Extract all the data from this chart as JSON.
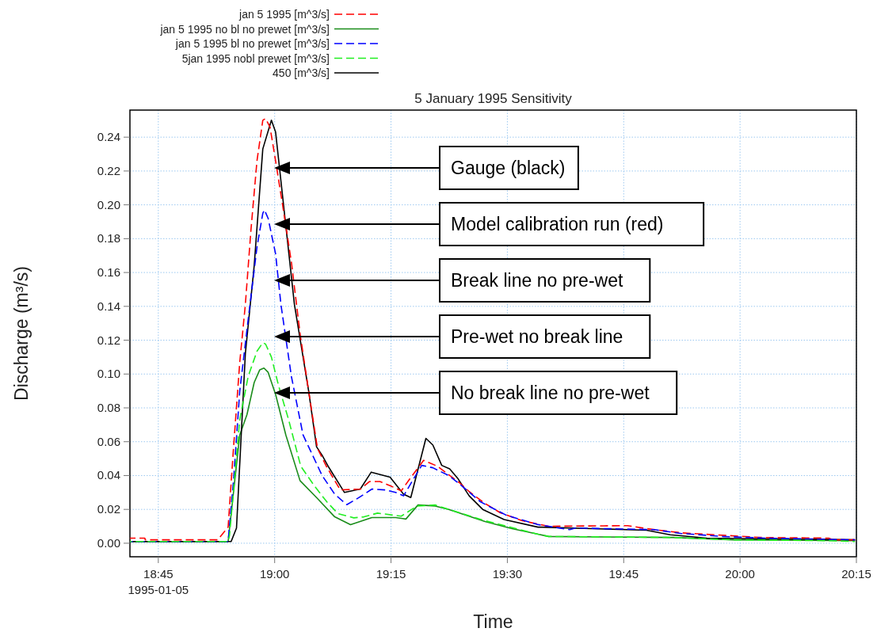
{
  "chart_data": {
    "type": "line",
    "title": "5 January 1995 Sensitivity",
    "xlabel": "Time",
    "ylabel": "Discharge (m³/s)",
    "xlim": [
      18.689,
      20.25
    ],
    "xticks": [
      {
        "value": 18.75,
        "label": "18:45\n1995-01-05"
      },
      {
        "value": 19,
        "label": "19:00"
      },
      {
        "value": 19.25,
        "label": "19:15"
      },
      {
        "value": 19.5,
        "label": "19:30"
      },
      {
        "value": 19.75,
        "label": "19:45"
      },
      {
        "value": 20,
        "label": "20:00"
      },
      {
        "value": 20.25,
        "label": "20:15"
      }
    ],
    "ylim": [
      -0.008,
      0.256
    ],
    "yticks": [
      {
        "value": 0,
        "label": "0.00"
      },
      {
        "value": 0.02,
        "label": "0.02"
      },
      {
        "value": 0.04,
        "label": "0.04"
      },
      {
        "value": 0.06,
        "label": "0.06"
      },
      {
        "value": 0.08,
        "label": "0.08"
      },
      {
        "value": 0.1,
        "label": "0.10"
      },
      {
        "value": 0.12,
        "label": "0.12"
      },
      {
        "value": 0.14,
        "label": "0.14"
      },
      {
        "value": 0.16,
        "label": "0.16"
      },
      {
        "value": 0.18,
        "label": "0.18"
      },
      {
        "value": 0.2,
        "label": "0.20"
      },
      {
        "value": 0.22,
        "label": "0.22"
      },
      {
        "value": 0.24,
        "label": "0.24"
      }
    ],
    "grid": true,
    "legend": "top left",
    "marker": "none",
    "series": [
      {
        "name": "jan 5 1995 [m^3/s]",
        "color": "#ff0000",
        "line_style": "dashed",
        "x": [
          18.689,
          18.721,
          18.722,
          18.8775,
          18.9,
          18.9115,
          18.925,
          18.937,
          18.949,
          18.962,
          18.9745,
          18.9805,
          18.99,
          19.002,
          19.017,
          19.036,
          19.0545,
          19.073,
          19.092,
          19.112,
          19.141,
          19.184,
          19.204,
          19.226,
          19.248,
          19.272,
          19.289,
          19.32,
          19.35,
          19.396,
          19.418,
          19.452,
          19.485,
          19.532,
          19.5885,
          19.7585,
          19.799,
          19.872,
          20.0425,
          20.1905,
          20.2005,
          20.247
        ],
        "values": [
          0.003,
          0.003,
          0.002,
          0.002,
          0.0095,
          0.056,
          0.107,
          0.141,
          0.185,
          0.226,
          0.25,
          0.251,
          0.246,
          0.226,
          0.2,
          0.166,
          0.124,
          0.09,
          0.056,
          0.045,
          0.0315,
          0.032,
          0.0365,
          0.0365,
          0.034,
          0.031,
          0.0375,
          0.049,
          0.0455,
          0.036,
          0.0305,
          0.0235,
          0.018,
          0.0133,
          0.01,
          0.0104,
          0.0086,
          0.0062,
          0.0034,
          0.003,
          0.002,
          0.002
        ]
      },
      {
        "name": "jan 5 1995 no bl no prewet [m^3/s]",
        "color": "#1a8c1a",
        "line_style": "solid",
        "x": [
          18.689,
          18.9,
          18.925,
          18.9405,
          18.956,
          18.968,
          18.977,
          18.986,
          19.002,
          19.024,
          19.0545,
          19.09,
          19.129,
          19.163,
          19.209,
          19.26,
          19.282,
          19.308,
          19.345,
          19.374,
          19.452,
          19.51,
          19.566,
          19.5885,
          19.8555,
          19.986,
          20.247
        ],
        "values": [
          0.001,
          0.001,
          0.064,
          0.076,
          0.095,
          0.1025,
          0.1035,
          0.101,
          0.088,
          0.064,
          0.037,
          0.027,
          0.0156,
          0.011,
          0.0152,
          0.0152,
          0.0143,
          0.0226,
          0.022,
          0.02,
          0.0128,
          0.0086,
          0.0053,
          0.004,
          0.0034,
          0.002,
          0.0015
        ]
      },
      {
        "name": "jan 5 1995 bl no prewet [m^3/s]",
        "color": "#0000ff",
        "line_style": "dashed",
        "x": [
          18.689,
          18.9,
          18.912,
          18.925,
          18.943,
          18.962,
          18.9745,
          18.978,
          18.986,
          19.002,
          19.0135,
          19.036,
          19.061,
          19.102,
          19.129,
          19.155,
          19.18,
          19.209,
          19.238,
          19.26,
          19.277,
          19.2995,
          19.316,
          19.34,
          19.374,
          19.396,
          19.442,
          19.498,
          19.566,
          19.634,
          19.646,
          19.816,
          19.872,
          19.963,
          20.0545,
          20.247
        ],
        "values": [
          0.001,
          0.001,
          0.0385,
          0.09,
          0.132,
          0.175,
          0.195,
          0.197,
          0.192,
          0.171,
          0.141,
          0.0985,
          0.064,
          0.04,
          0.029,
          0.0228,
          0.0268,
          0.032,
          0.0315,
          0.03,
          0.028,
          0.0385,
          0.046,
          0.0446,
          0.04,
          0.0353,
          0.0245,
          0.0165,
          0.011,
          0.008,
          0.009,
          0.008,
          0.0058,
          0.004,
          0.003,
          0.002
        ]
      },
      {
        "name": "5jan 1995 nobl prewet [m^3/s]",
        "color": "#22ee22",
        "line_style": "dashed",
        "x": [
          18.689,
          18.9,
          18.903,
          18.925,
          18.943,
          18.962,
          18.9745,
          18.9805,
          18.993,
          19.0085,
          19.03,
          19.056,
          19.085,
          19.112,
          19.136,
          19.17,
          19.192,
          19.221,
          19.272,
          19.306,
          19.345,
          19.374,
          19.452,
          19.566,
          19.5885,
          19.8555,
          19.986,
          20.1955,
          20.247
        ],
        "values": [
          0.001,
          0.001,
          0.0046,
          0.073,
          0.0985,
          0.1135,
          0.1185,
          0.1177,
          0.11,
          0.093,
          0.073,
          0.0456,
          0.034,
          0.0245,
          0.0175,
          0.015,
          0.0156,
          0.0178,
          0.016,
          0.022,
          0.0226,
          0.02,
          0.0133,
          0.0053,
          0.004,
          0.0034,
          0.002,
          0.0015,
          0.001
        ]
      },
      {
        "name": "450 [m^3/s]",
        "color": "#000000",
        "line_style": "solid",
        "x": [
          18.689,
          18.9065,
          18.918,
          18.937,
          18.956,
          18.9745,
          18.993,
          19.002,
          19.0425,
          19.073,
          19.09,
          19.102,
          19.116,
          19.15,
          19.184,
          19.2075,
          19.248,
          19.277,
          19.2925,
          19.325,
          19.34,
          19.359,
          19.376,
          19.393,
          19.418,
          19.447,
          19.493,
          19.566,
          19.575,
          19.799,
          19.85,
          19.929,
          20.247
        ],
        "values": [
          0.001,
          0.001,
          0.009,
          0.112,
          0.164,
          0.233,
          0.25,
          0.243,
          0.141,
          0.09,
          0.057,
          0.052,
          0.045,
          0.03,
          0.032,
          0.042,
          0.039,
          0.029,
          0.027,
          0.062,
          0.058,
          0.046,
          0.044,
          0.0385,
          0.028,
          0.02,
          0.014,
          0.0095,
          0.0095,
          0.0077,
          0.005,
          0.003,
          0.002
        ]
      }
    ],
    "annotations": [
      "Gauge (black)",
      "Model calibration run (red)",
      "Break line no pre-wet",
      "Pre-wet no break line",
      "No break line no pre-wet"
    ]
  }
}
